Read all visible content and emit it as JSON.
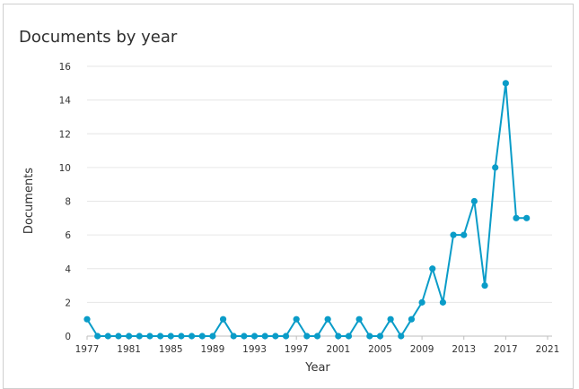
{
  "chart_data": {
    "type": "line",
    "title": "Documents by year",
    "xlabel": "Year",
    "ylabel": "Documents",
    "xlim": [
      1977,
      2021
    ],
    "ylim": [
      0,
      16
    ],
    "x_ticks": [
      "1977",
      "1981",
      "1985",
      "1989",
      "1993",
      "1997",
      "2001",
      "2005",
      "2009",
      "2013",
      "2017",
      "2021"
    ],
    "y_ticks": [
      "0",
      "2",
      "4",
      "6",
      "8",
      "10",
      "12",
      "14",
      "16"
    ],
    "grid": "horizontal",
    "legend": "none",
    "line_color": "#0a9cc8",
    "x": [
      1977,
      1978,
      1979,
      1980,
      1981,
      1982,
      1983,
      1984,
      1985,
      1986,
      1987,
      1988,
      1989,
      1990,
      1991,
      1992,
      1993,
      1994,
      1995,
      1996,
      1997,
      1998,
      1999,
      2000,
      2001,
      2002,
      2003,
      2004,
      2005,
      2006,
      2007,
      2008,
      2009,
      2010,
      2011,
      2012,
      2013,
      2014,
      2015,
      2016,
      2017,
      2018,
      2019
    ],
    "y": [
      1,
      0,
      0,
      0,
      0,
      0,
      0,
      0,
      0,
      0,
      0,
      0,
      0,
      1,
      0,
      0,
      0,
      0,
      0,
      0,
      1,
      0,
      0,
      1,
      0,
      0,
      1,
      0,
      0,
      1,
      0,
      1,
      2,
      4,
      2,
      6,
      6,
      8,
      3,
      10,
      15,
      7,
      7
    ]
  }
}
